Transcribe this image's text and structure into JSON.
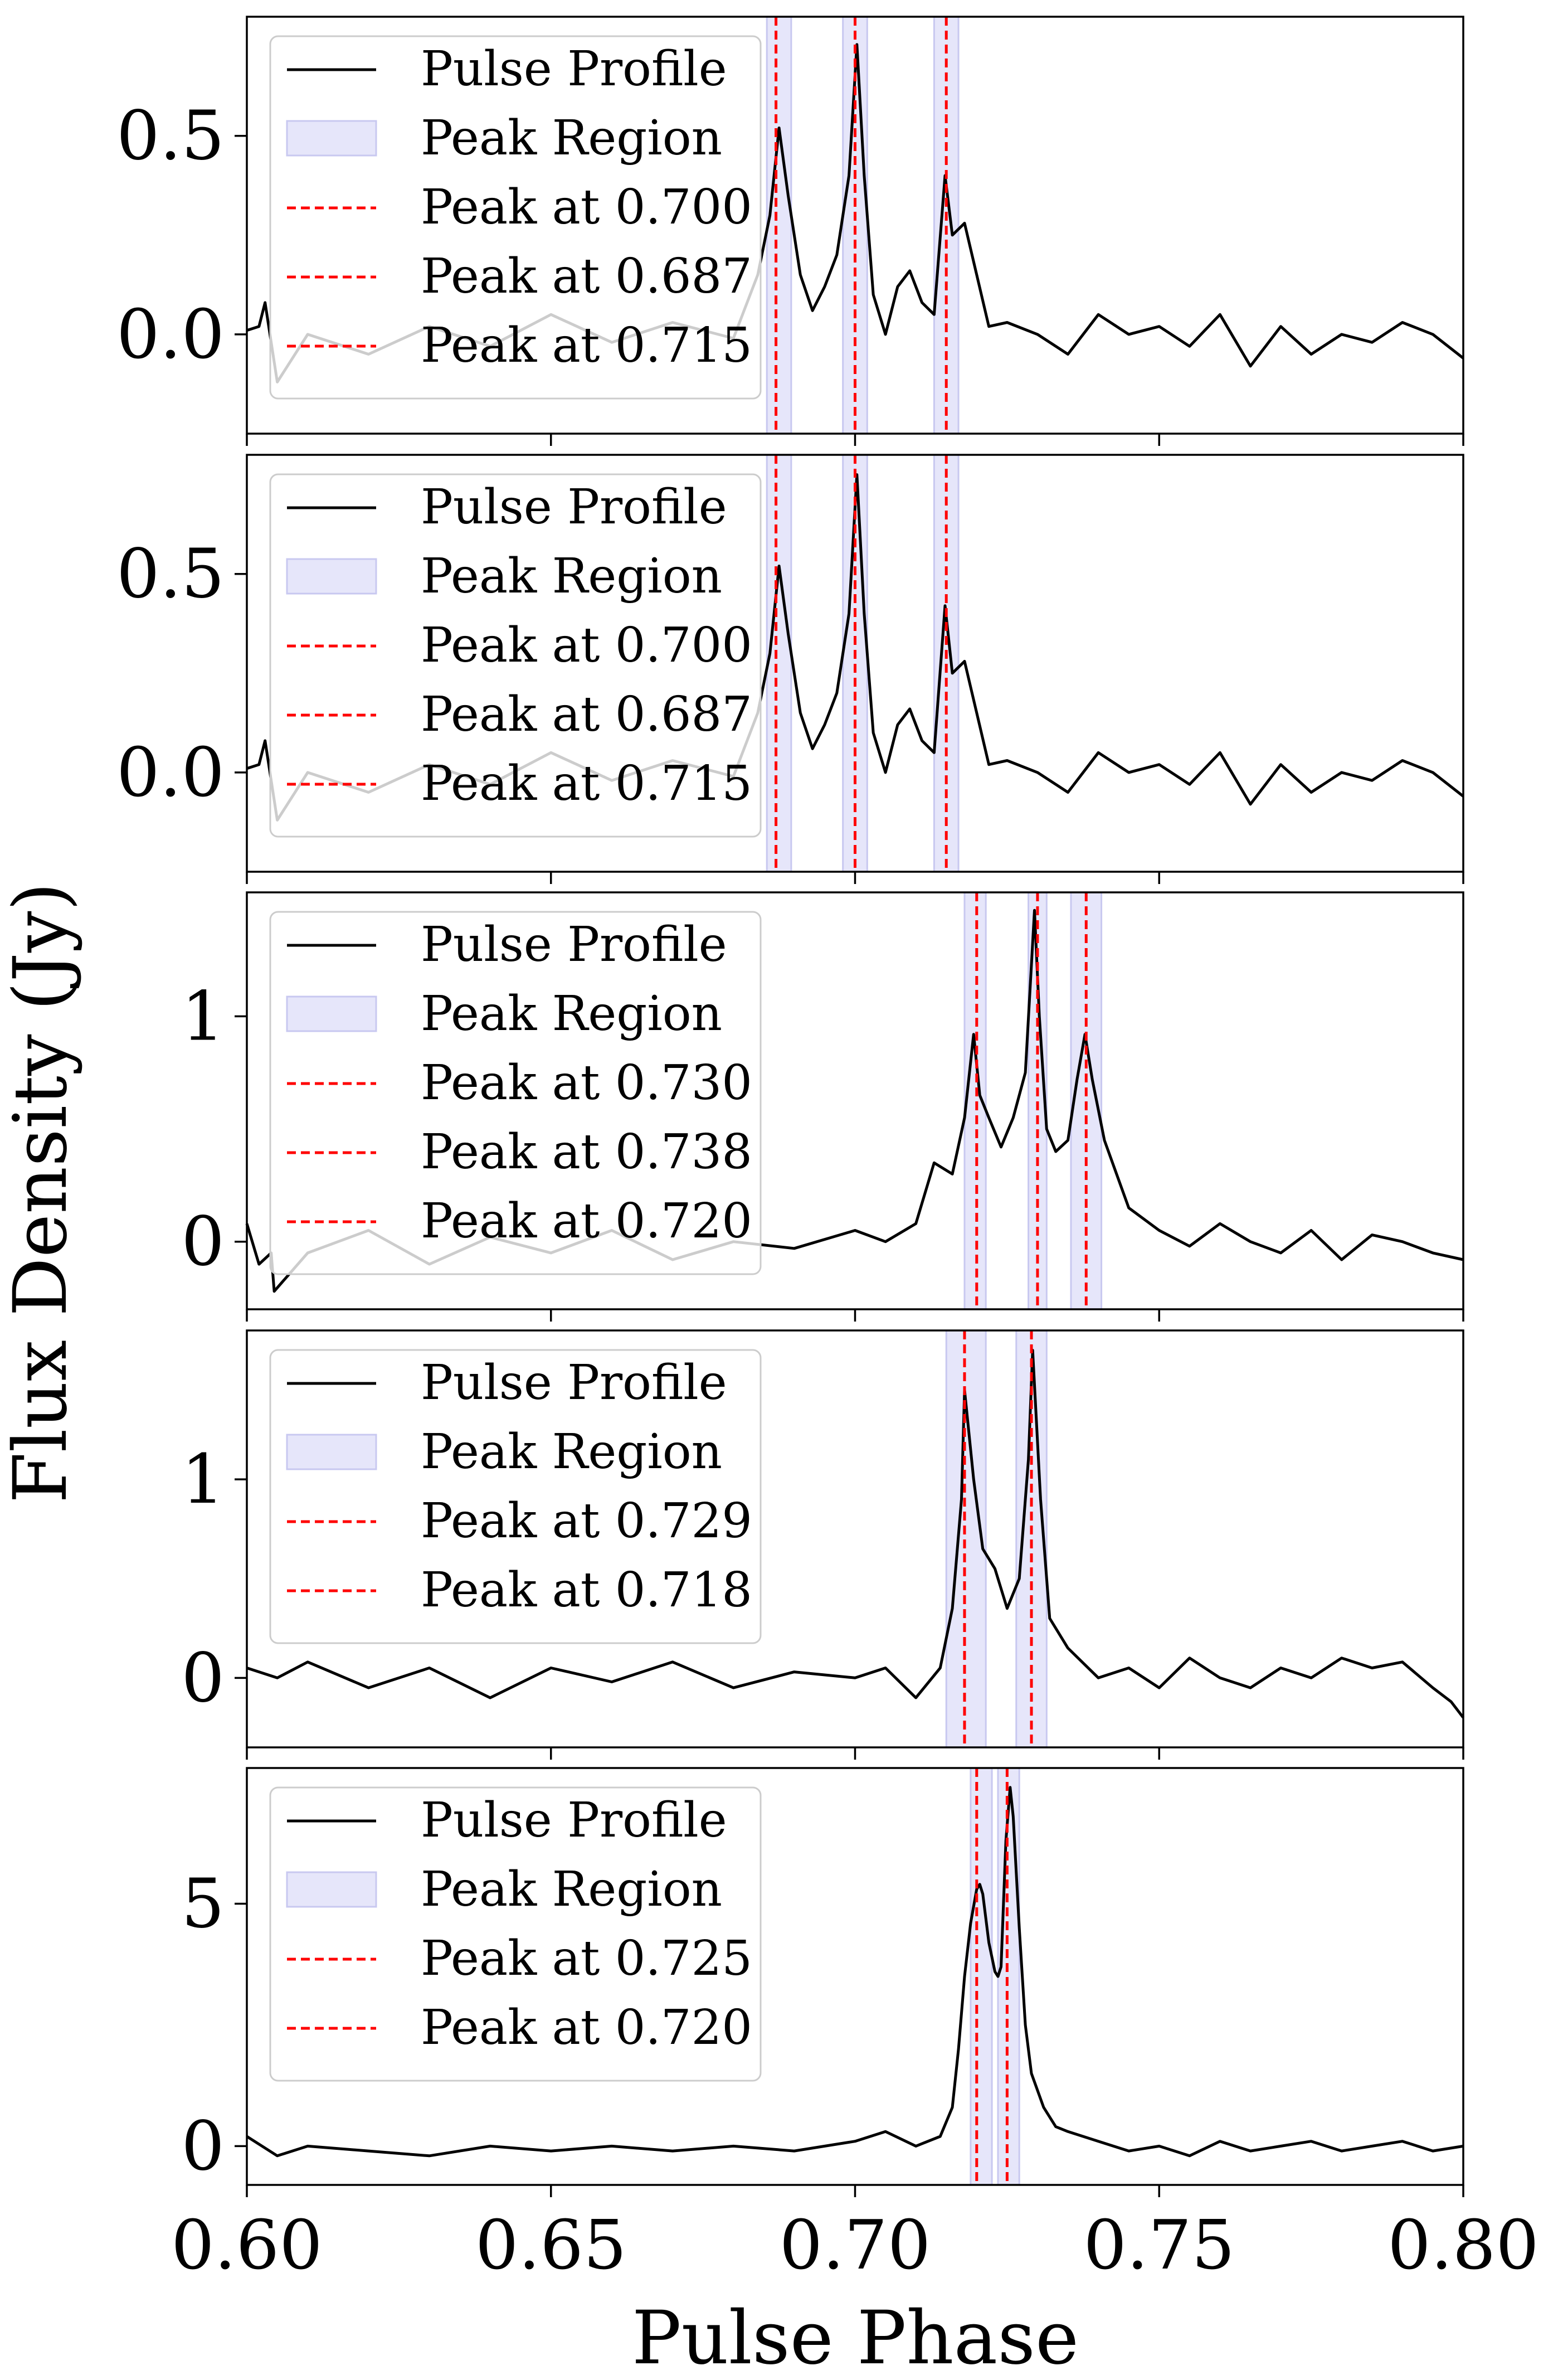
{
  "figure": {
    "xlabel": "Pulse Phase",
    "ylabel": "Flux Density (Jy)",
    "x_tick_labels": [
      "0.60",
      "0.65",
      "0.70",
      "0.75",
      "0.80"
    ]
  },
  "colors": {
    "profile": "#000000",
    "peak_line": "#ff0000",
    "peak_region": "#e6e6fa",
    "peak_region_edge": "#c8c8f0",
    "legend_frame": "#cccccc"
  },
  "chart_data": [
    {
      "type": "line",
      "xlim": [
        0.6,
        0.8
      ],
      "ylim": [
        -0.25,
        0.8
      ],
      "y_ticks": [
        0.0,
        0.5
      ],
      "y_tick_labels": [
        "0.0",
        "0.5"
      ],
      "grid": false,
      "legend_placement": "upper-left",
      "series": [
        {
          "name": "Pulse Profile",
          "type": "line",
          "color": "#000000",
          "x": [
            0.6,
            0.602,
            0.603,
            0.605,
            0.61,
            0.62,
            0.63,
            0.64,
            0.65,
            0.66,
            0.67,
            0.68,
            0.684,
            0.686,
            0.6875,
            0.689,
            0.691,
            0.693,
            0.695,
            0.697,
            0.699,
            0.7003,
            0.7015,
            0.703,
            0.705,
            0.707,
            0.709,
            0.711,
            0.713,
            0.7148,
            0.716,
            0.718,
            0.72,
            0.722,
            0.725,
            0.73,
            0.735,
            0.74,
            0.745,
            0.75,
            0.755,
            0.76,
            0.765,
            0.77,
            0.775,
            0.78,
            0.785,
            0.79,
            0.795,
            0.8
          ],
          "y": [
            0.01,
            0.02,
            0.08,
            -0.12,
            0.0,
            -0.05,
            0.02,
            -0.03,
            0.05,
            -0.02,
            0.03,
            -0.01,
            0.15,
            0.3,
            0.52,
            0.35,
            0.15,
            0.06,
            0.12,
            0.2,
            0.4,
            0.73,
            0.4,
            0.1,
            0.0,
            0.12,
            0.16,
            0.08,
            0.05,
            0.4,
            0.25,
            0.28,
            0.15,
            0.02,
            0.03,
            0.0,
            -0.05,
            0.05,
            0.0,
            0.02,
            -0.03,
            0.05,
            -0.08,
            0.02,
            -0.05,
            0.0,
            -0.02,
            0.03,
            0.0,
            -0.06
          ]
        },
        {
          "name": "Peak Region",
          "type": "span",
          "spans": [
            [
              0.6855,
              0.6895
            ],
            [
              0.698,
              0.702
            ],
            [
              0.713,
              0.717
            ]
          ]
        },
        {
          "name": "Peak at 0.700",
          "type": "vline",
          "x": 0.7
        },
        {
          "name": "Peak at 0.687",
          "type": "vline",
          "x": 0.687
        },
        {
          "name": "Peak at 0.715",
          "type": "vline",
          "x": 0.715
        }
      ]
    },
    {
      "type": "line",
      "xlim": [
        0.6,
        0.8
      ],
      "ylim": [
        -0.25,
        0.8
      ],
      "y_ticks": [
        0.0,
        0.5
      ],
      "y_tick_labels": [
        "0.0",
        "0.5"
      ],
      "grid": false,
      "legend_placement": "upper-left",
      "series": [
        {
          "name": "Pulse Profile",
          "type": "line",
          "color": "#000000",
          "x": [
            0.6,
            0.602,
            0.603,
            0.605,
            0.61,
            0.62,
            0.63,
            0.64,
            0.65,
            0.66,
            0.67,
            0.68,
            0.684,
            0.686,
            0.6875,
            0.689,
            0.691,
            0.693,
            0.695,
            0.697,
            0.699,
            0.7003,
            0.7015,
            0.703,
            0.705,
            0.707,
            0.709,
            0.711,
            0.713,
            0.7148,
            0.716,
            0.718,
            0.72,
            0.722,
            0.725,
            0.73,
            0.735,
            0.74,
            0.745,
            0.75,
            0.755,
            0.76,
            0.765,
            0.77,
            0.775,
            0.78,
            0.785,
            0.79,
            0.795,
            0.8
          ],
          "y": [
            0.01,
            0.02,
            0.08,
            -0.12,
            0.0,
            -0.05,
            0.02,
            -0.03,
            0.05,
            -0.02,
            0.03,
            -0.01,
            0.15,
            0.3,
            0.52,
            0.35,
            0.15,
            0.06,
            0.12,
            0.2,
            0.4,
            0.75,
            0.4,
            0.1,
            0.0,
            0.12,
            0.16,
            0.08,
            0.05,
            0.42,
            0.25,
            0.28,
            0.15,
            0.02,
            0.03,
            0.0,
            -0.05,
            0.05,
            0.0,
            0.02,
            -0.03,
            0.05,
            -0.08,
            0.02,
            -0.05,
            0.0,
            -0.02,
            0.03,
            0.0,
            -0.06
          ]
        },
        {
          "name": "Peak Region",
          "type": "span",
          "spans": [
            [
              0.6855,
              0.6895
            ],
            [
              0.698,
              0.702
            ],
            [
              0.713,
              0.717
            ]
          ]
        },
        {
          "name": "Peak at 0.700",
          "type": "vline",
          "x": 0.7
        },
        {
          "name": "Peak at 0.687",
          "type": "vline",
          "x": 0.687
        },
        {
          "name": "Peak at 0.715",
          "type": "vline",
          "x": 0.715
        }
      ]
    },
    {
      "type": "line",
      "xlim": [
        0.6,
        0.8
      ],
      "ylim": [
        -0.3,
        1.55
      ],
      "y_ticks": [
        0,
        1
      ],
      "y_tick_labels": [
        "0",
        "1"
      ],
      "grid": false,
      "legend_placement": "upper-left",
      "series": [
        {
          "name": "Pulse Profile",
          "type": "line",
          "color": "#000000",
          "x": [
            0.6,
            0.602,
            0.604,
            0.6045,
            0.61,
            0.62,
            0.63,
            0.64,
            0.65,
            0.66,
            0.67,
            0.68,
            0.69,
            0.7,
            0.705,
            0.71,
            0.713,
            0.716,
            0.718,
            0.7195,
            0.7205,
            0.722,
            0.724,
            0.726,
            0.728,
            0.7295,
            0.7303,
            0.7315,
            0.733,
            0.735,
            0.7365,
            0.7378,
            0.739,
            0.741,
            0.743,
            0.745,
            0.75,
            0.755,
            0.76,
            0.765,
            0.77,
            0.775,
            0.78,
            0.785,
            0.79,
            0.795,
            0.8
          ],
          "y": [
            0.08,
            -0.1,
            -0.05,
            -0.22,
            -0.05,
            0.05,
            -0.1,
            0.02,
            -0.05,
            0.05,
            -0.08,
            0.0,
            -0.03,
            0.05,
            0.0,
            0.08,
            0.35,
            0.3,
            0.55,
            0.92,
            0.65,
            0.55,
            0.42,
            0.55,
            0.75,
            1.47,
            1.0,
            0.5,
            0.4,
            0.45,
            0.72,
            0.92,
            0.72,
            0.45,
            0.3,
            0.15,
            0.05,
            -0.02,
            0.08,
            0.0,
            -0.05,
            0.05,
            -0.08,
            0.03,
            0.0,
            -0.05,
            -0.08
          ]
        },
        {
          "name": "Peak Region",
          "type": "span",
          "spans": [
            [
              0.718,
              0.7215
            ],
            [
              0.7285,
              0.7315
            ],
            [
              0.7355,
              0.7405
            ]
          ]
        },
        {
          "name": "Peak at 0.730",
          "type": "vline",
          "x": 0.73
        },
        {
          "name": "Peak at 0.738",
          "type": "vline",
          "x": 0.738
        },
        {
          "name": "Peak at 0.720",
          "type": "vline",
          "x": 0.72
        }
      ]
    },
    {
      "type": "line",
      "xlim": [
        0.6,
        0.8
      ],
      "ylim": [
        -0.35,
        1.75
      ],
      "y_ticks": [
        0,
        1
      ],
      "y_tick_labels": [
        "0",
        "1"
      ],
      "grid": false,
      "legend_placement": "upper-left",
      "series": [
        {
          "name": "Pulse Profile",
          "type": "line",
          "color": "#000000",
          "x": [
            0.6,
            0.605,
            0.61,
            0.62,
            0.63,
            0.64,
            0.65,
            0.66,
            0.67,
            0.68,
            0.69,
            0.7,
            0.705,
            0.71,
            0.714,
            0.716,
            0.7175,
            0.718,
            0.7195,
            0.721,
            0.723,
            0.725,
            0.727,
            0.7285,
            0.7292,
            0.7305,
            0.732,
            0.735,
            0.74,
            0.745,
            0.75,
            0.755,
            0.76,
            0.765,
            0.77,
            0.775,
            0.78,
            0.785,
            0.79,
            0.795,
            0.798,
            0.8
          ],
          "y": [
            0.05,
            0.0,
            0.08,
            -0.05,
            0.05,
            -0.1,
            0.05,
            -0.02,
            0.08,
            -0.05,
            0.03,
            0.0,
            0.05,
            -0.1,
            0.05,
            0.35,
            0.9,
            1.45,
            1.0,
            0.65,
            0.55,
            0.35,
            0.5,
            1.1,
            1.65,
            0.9,
            0.3,
            0.15,
            0.0,
            0.05,
            -0.05,
            0.1,
            0.0,
            -0.05,
            0.05,
            0.0,
            0.1,
            0.05,
            0.08,
            -0.05,
            -0.12,
            -0.2
          ]
        },
        {
          "name": "Peak Region",
          "type": "span",
          "spans": [
            [
              0.715,
              0.7215
            ],
            [
              0.7265,
              0.7315
            ]
          ]
        },
        {
          "name": "Peak at 0.729",
          "type": "vline",
          "x": 0.729
        },
        {
          "name": "Peak at 0.718",
          "type": "vline",
          "x": 0.718
        }
      ]
    },
    {
      "type": "line",
      "xlim": [
        0.6,
        0.8
      ],
      "ylim": [
        -0.8,
        7.8
      ],
      "y_ticks": [
        0,
        5
      ],
      "y_tick_labels": [
        "0",
        "5"
      ],
      "grid": false,
      "legend_placement": "upper-left",
      "series": [
        {
          "name": "Pulse Profile",
          "type": "line",
          "color": "#000000",
          "x": [
            0.6,
            0.605,
            0.61,
            0.62,
            0.63,
            0.64,
            0.65,
            0.66,
            0.67,
            0.68,
            0.69,
            0.7,
            0.705,
            0.71,
            0.714,
            0.716,
            0.717,
            0.718,
            0.719,
            0.72,
            0.7205,
            0.721,
            0.722,
            0.723,
            0.7235,
            0.724,
            0.7248,
            0.7255,
            0.726,
            0.727,
            0.728,
            0.729,
            0.731,
            0.733,
            0.735,
            0.74,
            0.745,
            0.75,
            0.755,
            0.76,
            0.765,
            0.77,
            0.775,
            0.78,
            0.785,
            0.79,
            0.795,
            0.8
          ],
          "y": [
            0.2,
            -0.2,
            0.0,
            -0.1,
            -0.2,
            0.0,
            -0.1,
            0.0,
            -0.1,
            0.0,
            -0.1,
            0.1,
            0.3,
            0.0,
            0.2,
            0.8,
            2.0,
            3.5,
            4.6,
            5.3,
            5.4,
            5.2,
            4.2,
            3.6,
            3.5,
            3.7,
            6.3,
            7.4,
            6.8,
            4.5,
            2.5,
            1.5,
            0.8,
            0.4,
            0.3,
            0.1,
            -0.1,
            0.0,
            -0.2,
            0.1,
            -0.1,
            0.0,
            0.1,
            -0.1,
            0.0,
            0.1,
            -0.1,
            0.0
          ]
        },
        {
          "name": "Peak Region",
          "type": "span",
          "spans": [
            [
              0.719,
              0.7225
            ],
            [
              0.7235,
              0.727
            ]
          ]
        },
        {
          "name": "Peak at 0.725",
          "type": "vline",
          "x": 0.725
        },
        {
          "name": "Peak at 0.720",
          "type": "vline",
          "x": 0.72
        }
      ]
    }
  ]
}
